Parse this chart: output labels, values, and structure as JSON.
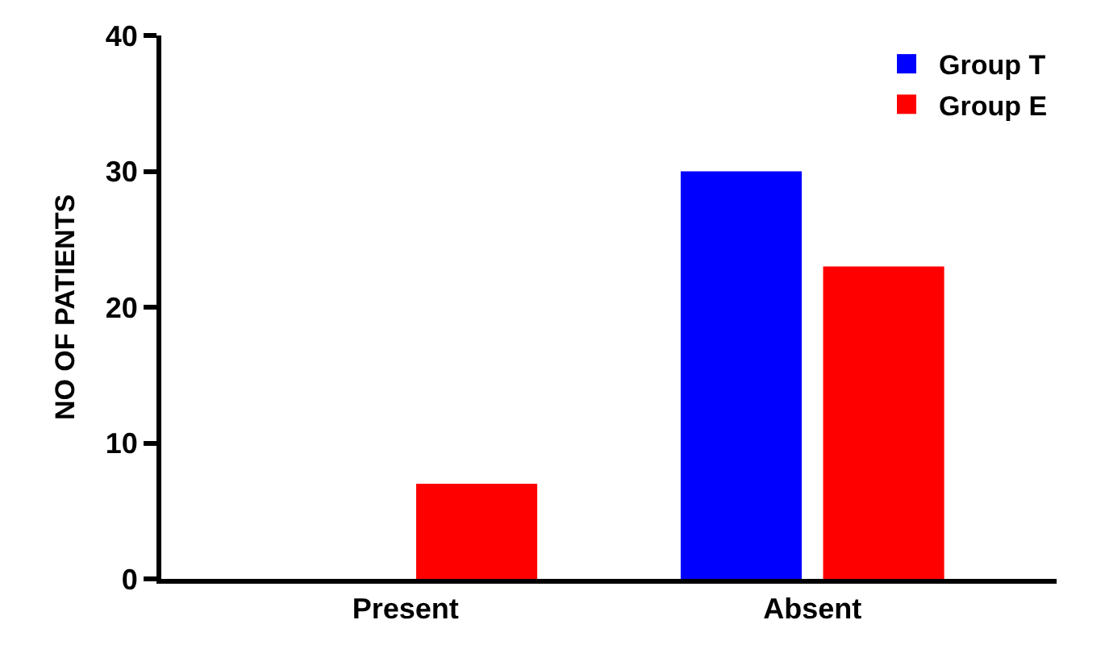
{
  "chart_data": {
    "type": "bar",
    "ylabel": "NO OF PATIENTS",
    "categories": [
      "Present",
      "Absent"
    ],
    "series": [
      {
        "name": "Group T",
        "color": "#0000ff",
        "values": [
          0,
          30
        ]
      },
      {
        "name": "Group E",
        "color": "#ff0000",
        "values": [
          7,
          23
        ]
      }
    ],
    "ylim": [
      0,
      40
    ],
    "yticks": [
      0,
      10,
      20,
      30,
      40
    ],
    "legend": "top right"
  }
}
